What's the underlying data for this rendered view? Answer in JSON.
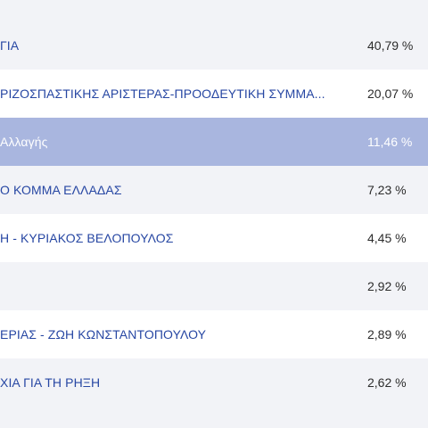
{
  "results": {
    "rows": [
      {
        "party": "ΓΙΑ",
        "percent": "40,79 %"
      },
      {
        "party": "ΡΙΖΟΣΠΑΣΤΙΚΗΣ ΑΡΙΣΤΕΡΑΣ-ΠΡΟΟΔΕΥΤΙΚΗ ΣΥΜΜΑ...",
        "percent": "20,07 %"
      },
      {
        "party": "Αλλαγής",
        "percent": "11,46 %"
      },
      {
        "party": "Ο ΚΟΜΜΑ ΕΛΛΑΔΑΣ",
        "percent": "7,23 %"
      },
      {
        "party": "Η - ΚΥΡΙΑΚΟΣ ΒΕΛΟΠΟΥΛΟΣ",
        "percent": "4,45 %"
      },
      {
        "party": "",
        "percent": "2,92 %"
      },
      {
        "party": "ΕΡΙΑΣ - ΖΩΗ ΚΩΝΣΤΑΝΤΟΠΟΥΛΟΥ",
        "percent": "2,89 %"
      },
      {
        "party": "ΧΙΑ ΓΙΑ ΤΗ ΡΗΞΗ",
        "percent": "2,62 %"
      }
    ],
    "selected_index": 2
  }
}
